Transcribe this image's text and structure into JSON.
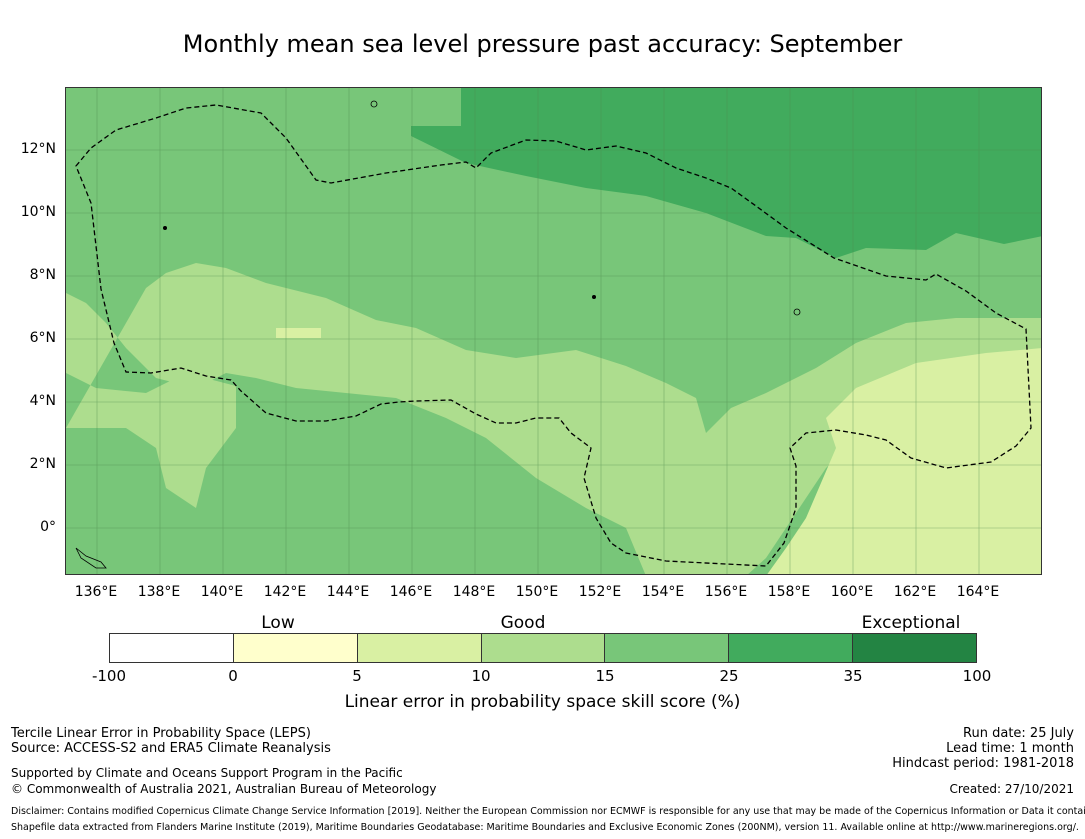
{
  "title": "Monthly mean sea level pressure past accuracy: September",
  "map": {
    "lat_labels": [
      "12°N",
      "10°N",
      "8°N",
      "6°N",
      "4°N",
      "2°N",
      "0°"
    ],
    "lon_labels": [
      "136°E",
      "138°E",
      "140°E",
      "142°E",
      "144°E",
      "146°E",
      "148°E",
      "150°E",
      "152°E",
      "154°E",
      "156°E",
      "158°E",
      "160°E",
      "162°E",
      "164°E"
    ],
    "lon_range": [
      135,
      166
    ],
    "lat_range": [
      -1.5,
      14
    ],
    "boundary": "EEZ boundary (dashed)"
  },
  "legend": {
    "categories": [
      "Low",
      "Good",
      "Exceptional"
    ],
    "ticks": [
      "-100",
      "0",
      "5",
      "10",
      "15",
      "25",
      "35",
      "100"
    ],
    "colors": [
      "#ffffff",
      "#ffffcc",
      "#d9f0a3",
      "#addd8e",
      "#78c679",
      "#41ab5d",
      "#238443"
    ],
    "label": "Linear error in probability space skill score (%)"
  },
  "info": {
    "left1": "Tercile Linear Error in Probability Space (LEPS)",
    "left2": "Source: ACCESS-S2 and ERA5 Climate Reanalysis",
    "left3": "Supported by Climate and Oceans Support Program in the Pacific",
    "left4": "© Commonwealth of Australia 2021, Australian Bureau of Meteorology",
    "right1": "Run date: 25 July",
    "right2": "Lead time: 1 month",
    "right3": "Hindcast period: 1981-2018",
    "right4": "Created: 27/10/2021",
    "disclaimer": "Disclaimer: Contains modified Copernicus Climate Change Service Information [2019]. Neither the European Commission nor ECMWF is responsible for any use that may be made of the Copernicus Information or Data it contains.",
    "shapefile": "Shapefile data extracted from Flanders Marine Institute (2019), Maritime Boundaries Geodatabase: Maritime Boundaries and Exclusive Economic Zones (200NM), version 11. Available online at http://www.marineregions.org/."
  }
}
